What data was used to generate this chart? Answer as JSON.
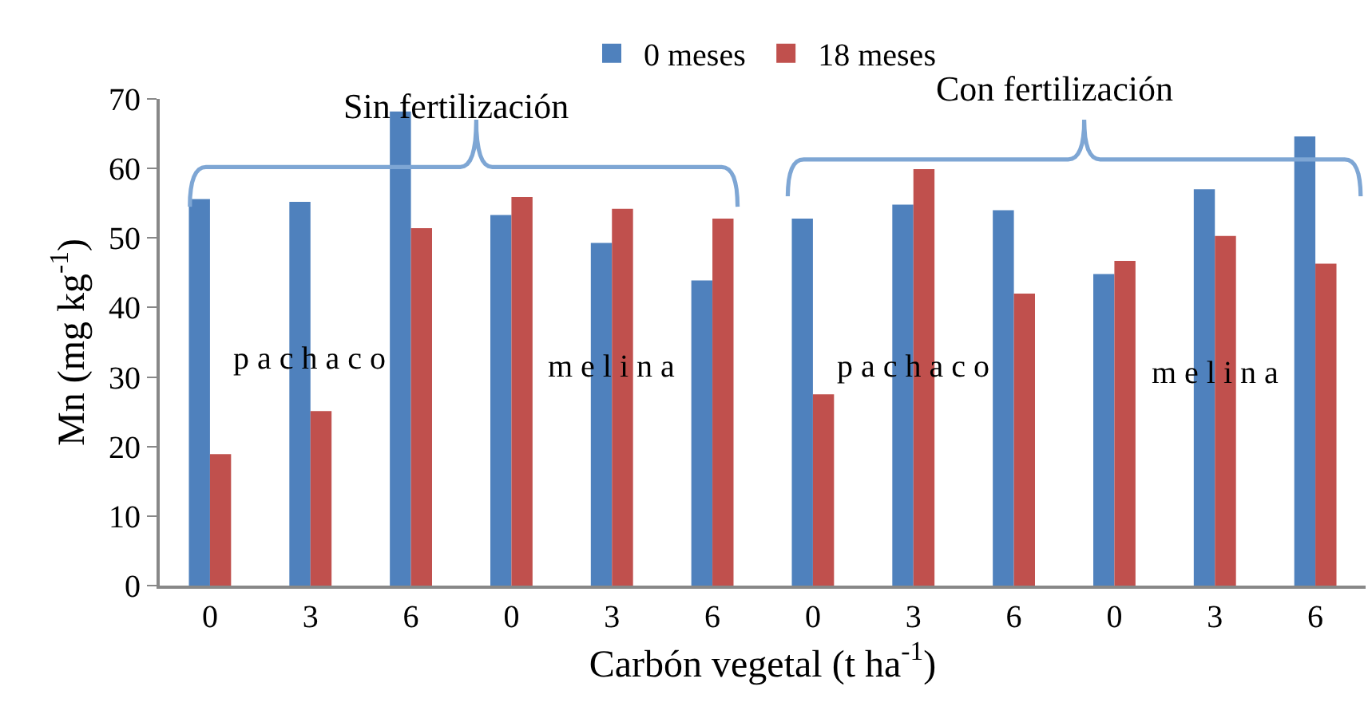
{
  "chart_data": {
    "type": "bar",
    "xlabel": "Carbón vegetal (t ha$^{-1}$)",
    "ylabel": "Mn (mg kg$^{-1}$)",
    "categories": [
      "0",
      "3",
      "6",
      "0",
      "3",
      "6",
      "0",
      "3",
      "6",
      "0",
      "3",
      "6"
    ],
    "series": [
      {
        "name": "0 meses",
        "color": "#4f81bd",
        "values": [
          55.6,
          55.2,
          68.2,
          53.3,
          49.3,
          43.9,
          52.8,
          54.8,
          54.0,
          44.8,
          57.0,
          64.6
        ]
      },
      {
        "name": "18 meses",
        "color": "#c0504d",
        "values": [
          18.9,
          25.1,
          51.4,
          55.9,
          54.2,
          52.8,
          27.5,
          59.9,
          42.0,
          46.7,
          50.3,
          46.3
        ]
      }
    ],
    "ylim": [
      0,
      70
    ],
    "yticks": [
      0,
      10,
      20,
      30,
      40,
      50,
      60,
      70
    ],
    "grid": false,
    "legend": "top",
    "annotations": [
      "Sin fertilización",
      "Con fertilización",
      "p a c h a c o",
      "m e l i n a",
      "p a c h a c o",
      "m e l i n a"
    ]
  }
}
